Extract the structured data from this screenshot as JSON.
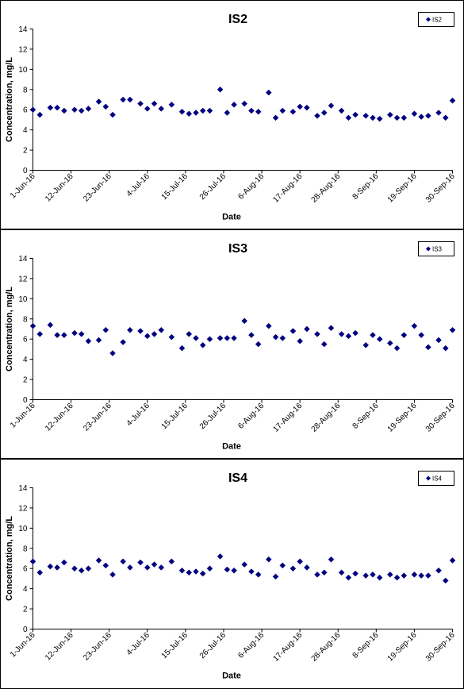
{
  "chart_data": [
    {
      "type": "scatter",
      "title": "IS2",
      "xlabel": "Date",
      "ylabel": "Concentration, mg/L",
      "ylim": [
        0,
        14
      ],
      "y_ticks": [
        "0",
        "2",
        "4",
        "6",
        "8",
        "10",
        "12",
        "14"
      ],
      "x_range": [
        "2016-06-01",
        "2016-09-30"
      ],
      "x_ticks": [
        "1-Jun-16",
        "12-Jun-16",
        "23-Jun-16",
        "4-Jul-16",
        "15-Jul-16",
        "26-Jul-16",
        "6-Aug-16",
        "17-Aug-16",
        "28-Aug-16",
        "8-Sep-16",
        "19-Sep-16",
        "30-Sep-16"
      ],
      "grid": false,
      "legend": "top-right",
      "series": [
        {
          "name": "IS2",
          "color": "#000080",
          "marker": "diamond",
          "x": [
            "2016-06-01",
            "2016-06-03",
            "2016-06-06",
            "2016-06-08",
            "2016-06-10",
            "2016-06-13",
            "2016-06-15",
            "2016-06-17",
            "2016-06-20",
            "2016-06-22",
            "2016-06-24",
            "2016-06-27",
            "2016-06-29",
            "2016-07-02",
            "2016-07-04",
            "2016-07-06",
            "2016-07-08",
            "2016-07-11",
            "2016-07-14",
            "2016-07-16",
            "2016-07-18",
            "2016-07-20",
            "2016-07-22",
            "2016-07-25",
            "2016-07-27",
            "2016-07-29",
            "2016-08-01",
            "2016-08-03",
            "2016-08-05",
            "2016-08-08",
            "2016-08-10",
            "2016-08-12",
            "2016-08-15",
            "2016-08-17",
            "2016-08-19",
            "2016-08-22",
            "2016-08-24",
            "2016-08-26",
            "2016-08-29",
            "2016-08-31",
            "2016-09-02",
            "2016-09-05",
            "2016-09-07",
            "2016-09-09",
            "2016-09-12",
            "2016-09-14",
            "2016-09-16",
            "2016-09-19",
            "2016-09-21",
            "2016-09-23",
            "2016-09-26",
            "2016-09-28",
            "2016-09-30"
          ],
          "y": [
            6.0,
            5.5,
            6.2,
            6.2,
            5.9,
            6.0,
            5.9,
            6.1,
            6.8,
            6.3,
            5.5,
            7.0,
            7.0,
            6.6,
            6.1,
            6.6,
            6.1,
            6.5,
            5.8,
            5.6,
            5.7,
            5.9,
            5.9,
            8.0,
            5.7,
            6.5,
            6.6,
            5.9,
            5.8,
            7.7,
            5.2,
            5.9,
            5.8,
            6.3,
            6.2,
            5.4,
            5.7,
            6.4,
            5.9,
            5.2,
            5.5,
            5.4,
            5.2,
            5.1,
            5.5,
            5.2,
            5.2,
            5.6,
            5.3,
            5.4,
            5.7,
            5.2,
            6.9
          ]
        }
      ]
    },
    {
      "type": "scatter",
      "title": "IS3",
      "xlabel": "Date",
      "ylabel": "Concentration, mg/L",
      "ylim": [
        0,
        14
      ],
      "y_ticks": [
        "0",
        "2",
        "4",
        "6",
        "8",
        "10",
        "12",
        "14"
      ],
      "x_range": [
        "2016-06-01",
        "2016-09-30"
      ],
      "x_ticks": [
        "1-Jun-16",
        "12-Jun-16",
        "23-Jun-16",
        "4-Jul-16",
        "15-Jul-16",
        "26-Jul-16",
        "6-Aug-16",
        "17-Aug-16",
        "28-Aug-16",
        "8-Sep-16",
        "19-Sep-16",
        "30-Sep-16"
      ],
      "grid": false,
      "legend": "top-right",
      "series": [
        {
          "name": "IS3",
          "color": "#000080",
          "marker": "diamond",
          "x": [
            "2016-06-01",
            "2016-06-03",
            "2016-06-06",
            "2016-06-08",
            "2016-06-10",
            "2016-06-13",
            "2016-06-15",
            "2016-06-17",
            "2016-06-20",
            "2016-06-22",
            "2016-06-24",
            "2016-06-27",
            "2016-06-29",
            "2016-07-02",
            "2016-07-04",
            "2016-07-06",
            "2016-07-08",
            "2016-07-11",
            "2016-07-14",
            "2016-07-16",
            "2016-07-18",
            "2016-07-20",
            "2016-07-22",
            "2016-07-25",
            "2016-07-27",
            "2016-07-29",
            "2016-08-01",
            "2016-08-03",
            "2016-08-05",
            "2016-08-08",
            "2016-08-10",
            "2016-08-12",
            "2016-08-15",
            "2016-08-17",
            "2016-08-19",
            "2016-08-22",
            "2016-08-24",
            "2016-08-26",
            "2016-08-29",
            "2016-08-31",
            "2016-09-02",
            "2016-09-05",
            "2016-09-07",
            "2016-09-09",
            "2016-09-12",
            "2016-09-14",
            "2016-09-16",
            "2016-09-19",
            "2016-09-21",
            "2016-09-23",
            "2016-09-26",
            "2016-09-28",
            "2016-09-30"
          ],
          "y": [
            7.3,
            6.5,
            7.4,
            6.4,
            6.4,
            6.6,
            6.5,
            5.8,
            5.9,
            6.9,
            4.6,
            5.7,
            6.9,
            6.8,
            6.3,
            6.5,
            6.9,
            6.2,
            5.1,
            6.5,
            6.1,
            5.4,
            6.0,
            6.1,
            6.1,
            6.1,
            7.8,
            6.4,
            5.5,
            7.3,
            6.2,
            6.1,
            6.8,
            5.8,
            7.0,
            6.5,
            5.5,
            7.1,
            6.5,
            6.3,
            6.6,
            5.4,
            6.4,
            6.0,
            5.6,
            5.1,
            6.4,
            7.3,
            6.4,
            5.2,
            5.9,
            5.1,
            6.9
          ]
        }
      ]
    },
    {
      "type": "scatter",
      "title": "IS4",
      "xlabel": "Date",
      "ylabel": "Concentration, mg/L",
      "ylim": [
        0,
        14
      ],
      "y_ticks": [
        "0",
        "2",
        "4",
        "6",
        "8",
        "10",
        "12",
        "14"
      ],
      "x_range": [
        "2016-06-01",
        "2016-09-30"
      ],
      "x_ticks": [
        "1-Jun-16",
        "12-Jun-16",
        "23-Jun-16",
        "4-Jul-16",
        "15-Jul-16",
        "26-Jul-16",
        "6-Aug-16",
        "17-Aug-16",
        "28-Aug-16",
        "8-Sep-16",
        "19-Sep-16",
        "30-Sep-16"
      ],
      "grid": false,
      "legend": "top-right",
      "series": [
        {
          "name": "IS4",
          "color": "#000080",
          "marker": "diamond",
          "x": [
            "2016-06-01",
            "2016-06-03",
            "2016-06-06",
            "2016-06-08",
            "2016-06-10",
            "2016-06-13",
            "2016-06-15",
            "2016-06-17",
            "2016-06-20",
            "2016-06-22",
            "2016-06-24",
            "2016-06-27",
            "2016-06-29",
            "2016-07-02",
            "2016-07-04",
            "2016-07-06",
            "2016-07-08",
            "2016-07-11",
            "2016-07-14",
            "2016-07-16",
            "2016-07-18",
            "2016-07-20",
            "2016-07-22",
            "2016-07-25",
            "2016-07-27",
            "2016-07-29",
            "2016-08-01",
            "2016-08-03",
            "2016-08-05",
            "2016-08-08",
            "2016-08-10",
            "2016-08-12",
            "2016-08-15",
            "2016-08-17",
            "2016-08-19",
            "2016-08-22",
            "2016-08-24",
            "2016-08-26",
            "2016-08-29",
            "2016-08-31",
            "2016-09-02",
            "2016-09-05",
            "2016-09-07",
            "2016-09-09",
            "2016-09-12",
            "2016-09-14",
            "2016-09-16",
            "2016-09-19",
            "2016-09-21",
            "2016-09-23",
            "2016-09-26",
            "2016-09-28",
            "2016-09-30"
          ],
          "y": [
            6.7,
            5.6,
            6.2,
            6.1,
            6.6,
            6.0,
            5.8,
            6.0,
            6.8,
            6.3,
            5.4,
            6.7,
            6.1,
            6.6,
            6.1,
            6.4,
            6.1,
            6.7,
            5.8,
            5.6,
            5.7,
            5.5,
            6.0,
            7.2,
            5.9,
            5.8,
            6.4,
            5.7,
            5.4,
            6.9,
            5.2,
            6.3,
            6.0,
            6.7,
            6.1,
            5.4,
            5.6,
            6.9,
            5.6,
            5.1,
            5.5,
            5.3,
            5.4,
            5.1,
            5.4,
            5.1,
            5.3,
            5.4,
            5.3,
            5.3,
            5.8,
            4.8,
            6.8
          ]
        }
      ]
    }
  ]
}
